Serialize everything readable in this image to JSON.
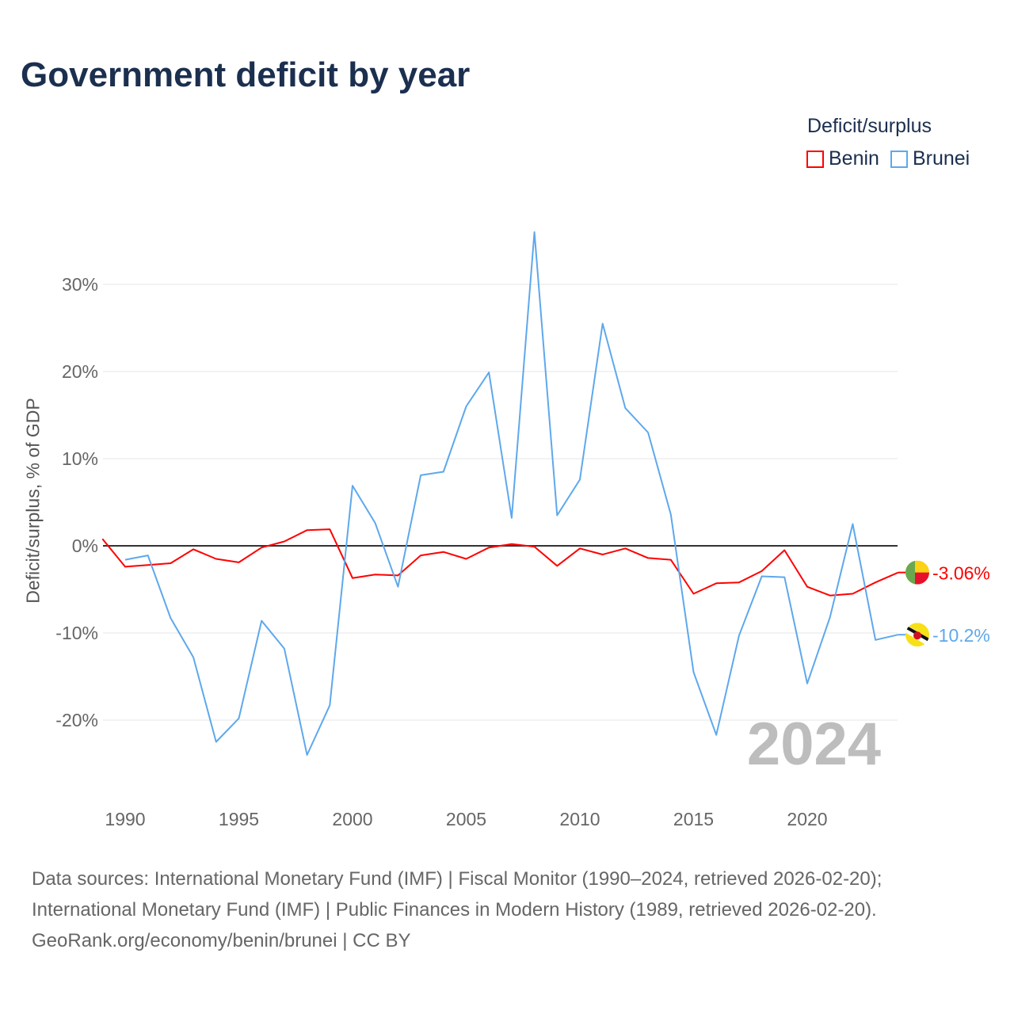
{
  "chart_data": {
    "type": "line",
    "title": "Government deficit by year",
    "ylabel": "Deficit/surplus, % of GDP",
    "xlabel": "",
    "legend_title": "Deficit/surplus",
    "legend_position": "top-right",
    "year_watermark": "2024",
    "xlim": [
      1989,
      2024
    ],
    "ylim": [
      -28,
      36
    ],
    "x_ticks": [
      1990,
      1995,
      2000,
      2005,
      2010,
      2015,
      2020
    ],
    "y_ticks": [
      -20,
      -10,
      0,
      10,
      20,
      30
    ],
    "y_tick_labels": [
      "-20%",
      "-10%",
      "0%",
      "10%",
      "20%",
      "30%"
    ],
    "grid": true,
    "series": [
      {
        "name": "Benin",
        "color": "#ff0000",
        "start_year": 1989,
        "end_label": "-3.06%",
        "values": [
          0.8,
          -2.4,
          -2.2,
          -2.0,
          -0.4,
          -1.5,
          -1.9,
          -0.2,
          0.5,
          1.8,
          1.9,
          -3.7,
          -3.3,
          -3.4,
          -1.1,
          -0.7,
          -1.5,
          -0.2,
          0.2,
          -0.1,
          -2.3,
          -0.3,
          -1.0,
          -0.3,
          -1.4,
          -1.6,
          -5.5,
          -4.3,
          -4.2,
          -2.9,
          -0.5,
          -4.7,
          -5.7,
          -5.5,
          -4.2,
          -3.06
        ]
      },
      {
        "name": "Brunei",
        "color": "#5ea8ec",
        "start_year": 1990,
        "end_label": "-10.2%",
        "values": [
          -1.6,
          -1.1,
          -8.3,
          -12.8,
          -22.5,
          -19.8,
          -8.6,
          -11.8,
          -24.0,
          -18.3,
          6.9,
          2.6,
          -4.7,
          8.1,
          8.5,
          16.0,
          19.9,
          3.2,
          36.0,
          3.5,
          7.6,
          25.5,
          15.8,
          13.0,
          3.6,
          -14.5,
          -21.7,
          -10.3,
          -3.5,
          -3.6,
          -15.8,
          -8.2,
          2.5,
          -10.8,
          -10.2
        ]
      }
    ]
  },
  "footer": {
    "line1": "Data sources: International Monetary Fund (IMF) | Fiscal Monitor (1990–2024, retrieved 2026-02-20);",
    "line2": "International Monetary Fund (IMF) | Public Finances in Modern History (1989, retrieved 2026-02-20).",
    "line3": "GeoRank.org/economy/benin/brunei | CC BY"
  }
}
